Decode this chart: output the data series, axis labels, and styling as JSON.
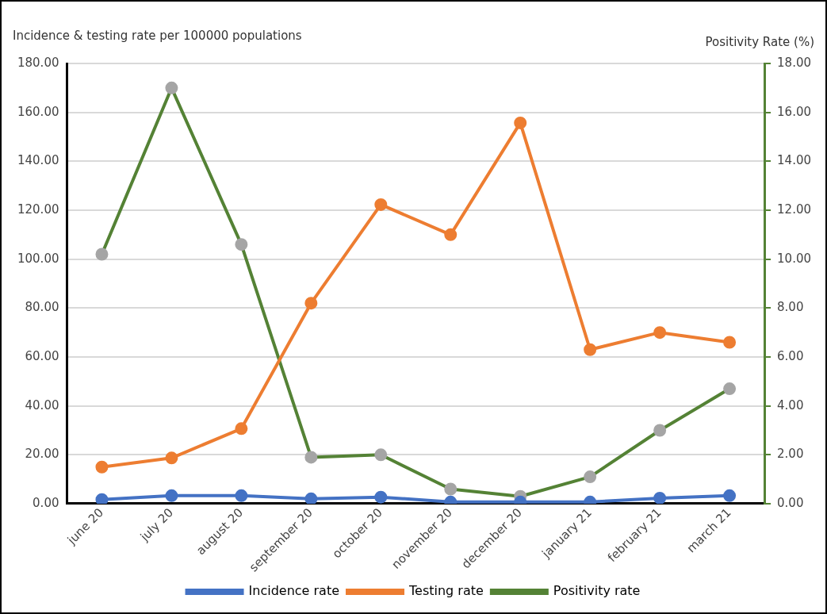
{
  "chart_data": {
    "type": "line",
    "ylabel": "Incidence & testing rate per 100000 populations",
    "y2label": "Positivity Rate (%)",
    "categories": [
      "june 20",
      "july 20",
      "august 20",
      "september 20",
      "october 20",
      "november 20",
      "december 20",
      "january 21",
      "february 21",
      "march 21"
    ],
    "series": [
      {
        "name": "Incidence rate",
        "color": "#4472c4",
        "values": [
          1.7,
          3.3,
          3.3,
          2,
          2.7,
          0.7,
          0.7,
          0.7,
          2.3,
          3.3
        ]
      },
      {
        "name": "Testing rate",
        "color": "#ed7d31",
        "values": [
          15,
          18.7,
          30.7,
          82,
          122.3,
          110,
          155.7,
          63,
          70,
          66
        ]
      },
      {
        "name": "Positivity rate",
        "color": "#548235",
        "axis": "y2",
        "values": [
          10.2,
          17,
          10.6,
          1.9,
          2,
          0.6,
          0.3,
          1.1,
          3,
          4.7
        ]
      }
    ],
    "ylim": [
      0,
      180
    ],
    "yticks": [
      {
        "value": 0,
        "label": "0.00"
      },
      {
        "value": 20,
        "label": "20.00"
      },
      {
        "value": 40,
        "label": "40.00"
      },
      {
        "value": 60,
        "label": "60.00"
      },
      {
        "value": 80,
        "label": "80.00"
      },
      {
        "value": 100,
        "label": "100.00"
      },
      {
        "value": 120,
        "label": "120.00"
      },
      {
        "value": 140,
        "label": "140.00"
      },
      {
        "value": 160,
        "label": "160.00"
      },
      {
        "value": 180,
        "label": "180.00"
      }
    ],
    "y2lim": [
      0,
      18
    ],
    "y2ticks": [
      {
        "value": 0,
        "label": "0.00"
      },
      {
        "value": 2,
        "label": "2.00"
      },
      {
        "value": 4,
        "label": "4.00"
      },
      {
        "value": 6,
        "label": "6.00"
      },
      {
        "value": 8,
        "label": "8.00"
      },
      {
        "value": 10,
        "label": "10.00"
      },
      {
        "value": 12,
        "label": "12.00"
      },
      {
        "value": 14,
        "label": "14.00"
      },
      {
        "value": 16,
        "label": "16.00"
      },
      {
        "value": 18,
        "label": "18.00"
      }
    ],
    "grid": "y",
    "legend": "bottom",
    "marker": "circle",
    "line_style": "solid"
  }
}
